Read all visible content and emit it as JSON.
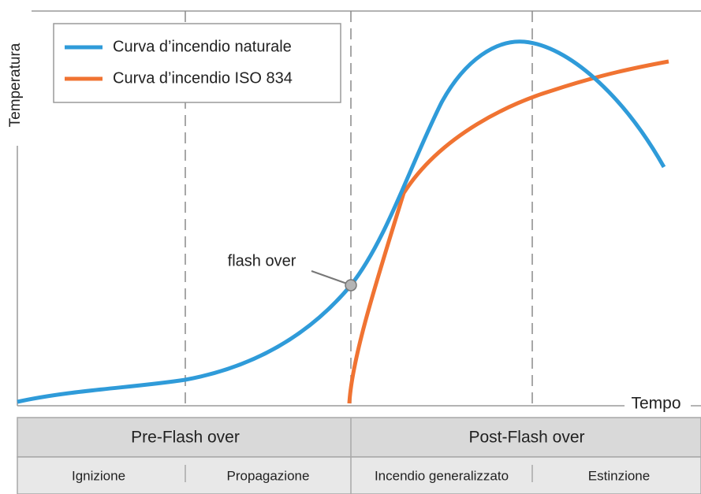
{
  "legend": [
    "Curva d’incendio naturale",
    "Curva d’incendio ISO 834"
  ],
  "axes": {
    "y": "Temperatura",
    "x": "Tempo"
  },
  "annotation": "flash over",
  "phases": [
    {
      "label": "Pre-Flash over",
      "stages": [
        "Ignizione",
        "Propagazione"
      ]
    },
    {
      "label": "Post-Flash over",
      "stages": [
        "Incendio generalizzato",
        "Estinzione"
      ]
    }
  ]
}
